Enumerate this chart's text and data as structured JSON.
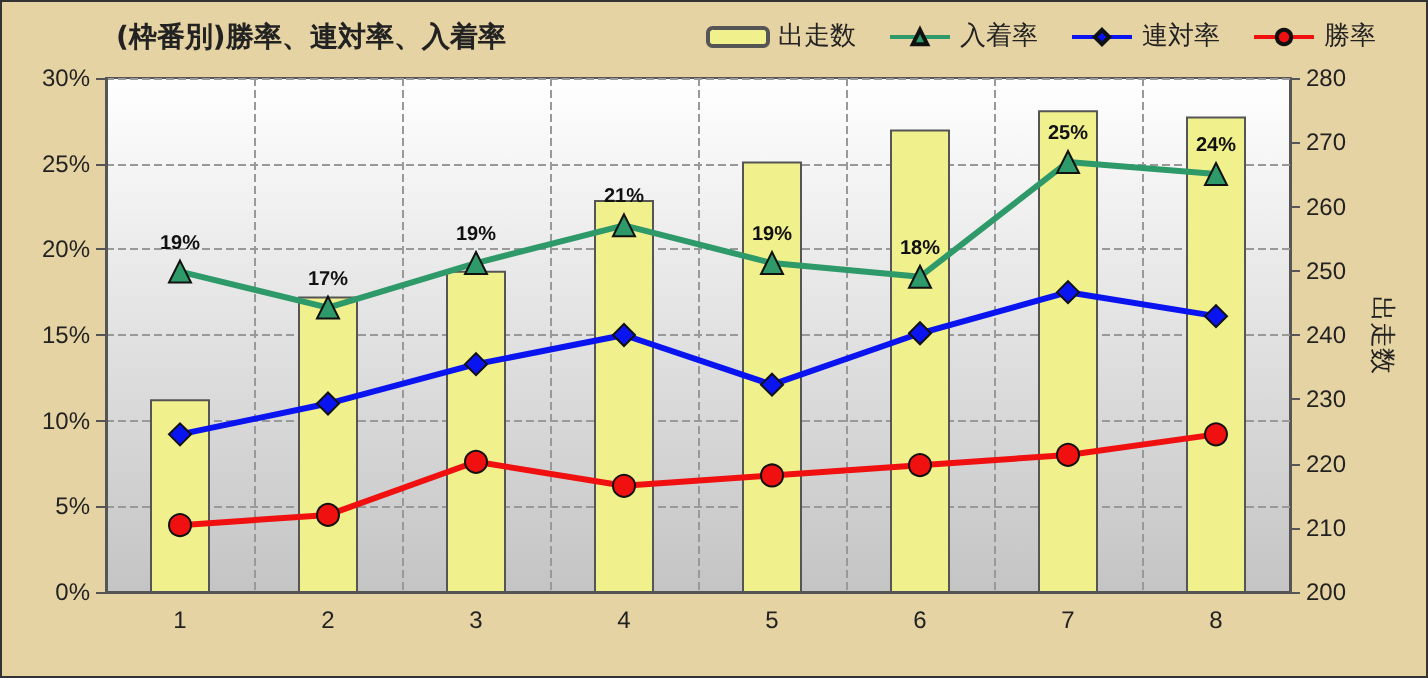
{
  "chart_data": {
    "type": "line",
    "title": "(枠番別)勝率、連対率、入着率",
    "y2label": "出走数",
    "categories": [
      "1",
      "2",
      "3",
      "4",
      "5",
      "6",
      "7",
      "8"
    ],
    "series": [
      {
        "name": "出走数",
        "type": "bar",
        "axis": "y2",
        "color": "#f0f08c",
        "values": [
          230,
          246,
          250,
          261,
          267,
          272,
          275,
          274
        ]
      },
      {
        "name": "入着率",
        "color": "#2e9a6a",
        "marker": "triangle",
        "values": [
          18.7,
          16.6,
          19.2,
          21.4,
          19.2,
          18.4,
          25.1,
          24.4
        ],
        "value_labels": [
          "19%",
          "17%",
          "19%",
          "21%",
          "19%",
          "18%",
          "25%",
          "24%"
        ]
      },
      {
        "name": "連対率",
        "color": "#0a14f0",
        "marker": "diamond",
        "values": [
          9.2,
          11.0,
          13.3,
          15.0,
          12.1,
          15.1,
          17.5,
          16.1
        ]
      },
      {
        "name": "勝率",
        "color": "#f01010",
        "marker": "circle",
        "values": [
          3.9,
          4.5,
          7.6,
          6.2,
          6.8,
          7.4,
          8.0,
          9.2
        ]
      }
    ],
    "ylim": [
      0,
      30
    ],
    "yticks": [
      {
        "value": 0,
        "label": "0%"
      },
      {
        "value": 5,
        "label": "5%"
      },
      {
        "value": 10,
        "label": "10%"
      },
      {
        "value": 15,
        "label": "15%"
      },
      {
        "value": 20,
        "label": "20%"
      },
      {
        "value": 25,
        "label": "25%"
      },
      {
        "value": 30,
        "label": "30%"
      }
    ],
    "y2lim": [
      200,
      280
    ],
    "y2ticks": [
      200,
      210,
      220,
      230,
      240,
      250,
      260,
      270,
      280
    ],
    "grid": true,
    "legend": "top right"
  }
}
